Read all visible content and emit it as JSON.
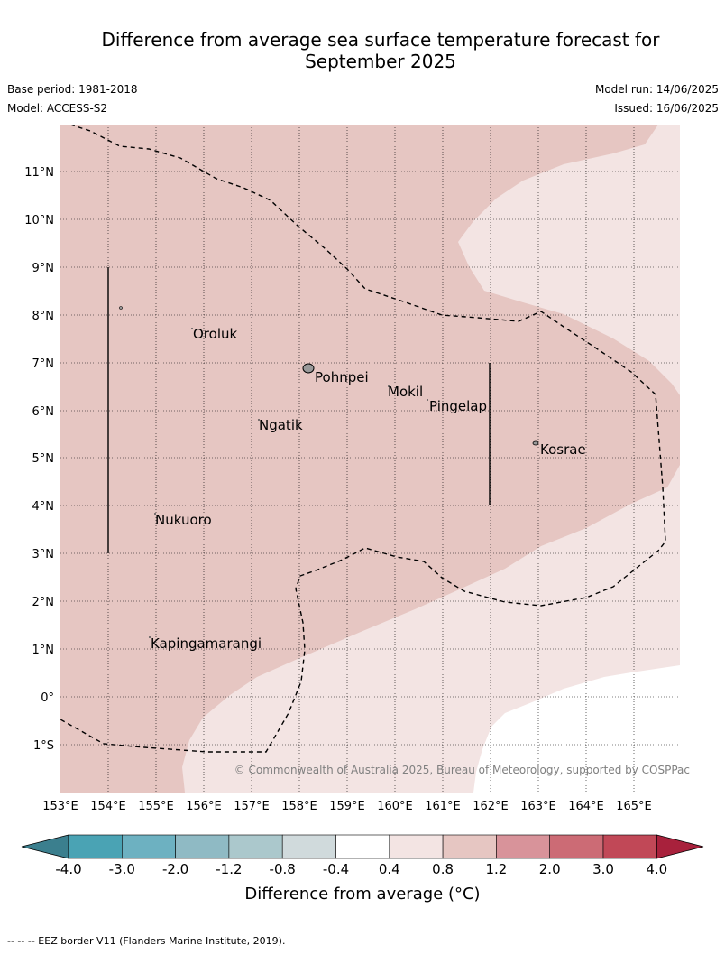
{
  "title_line1": "Difference from average sea surface temperature forecast for",
  "title_line2": "September 2025",
  "base_period": "Base period: 1981-2018",
  "model": "Model: ACCESS-S2",
  "model_run": "Model run: 14/06/2025",
  "issued": "Issued: 16/06/2025",
  "copyright": "© Commonwealth of Australia 2025, Bureau of Meteorology, supported by COSPPac",
  "lon_ticks": [
    "153°E",
    "154°E",
    "155°E",
    "156°E",
    "157°E",
    "158°E",
    "159°E",
    "160°E",
    "161°E",
    "162°E",
    "163°E",
    "164°E",
    "165°E"
  ],
  "lat_ticks": [
    "11°N",
    "10°N",
    "9°N",
    "8°N",
    "7°N",
    "6°N",
    "5°N",
    "4°N",
    "3°N",
    "2°N",
    "1°N",
    "0°",
    "1°S"
  ],
  "islands": [
    {
      "name": "Oroluk"
    },
    {
      "name": "Pohnpei"
    },
    {
      "name": "Mokil"
    },
    {
      "name": "Pingelap"
    },
    {
      "name": "Ngatik"
    },
    {
      "name": "Kosrae"
    },
    {
      "name": "Nukuoro"
    },
    {
      "name": "Kapingamarangi"
    }
  ],
  "colorbar": {
    "labels": [
      "-4.0",
      "-3.0",
      "-2.0",
      "-1.2",
      "-0.8",
      "-0.4",
      "0.4",
      "0.8",
      "1.2",
      "2.0",
      "3.0",
      "4.0"
    ],
    "colors": [
      "#3b7f8e",
      "#4aa3b4",
      "#6db1c1",
      "#8fbac4",
      "#abc8cc",
      "#d0dadc",
      "#ffffff",
      "#f3e4e3",
      "#e6c6c2",
      "#d8939a",
      "#cc6b75",
      "#c14857",
      "#a8213c"
    ],
    "label": "Difference from average (°C)"
  },
  "fill_colors": {
    "high": "#e6c6c2",
    "low": "#f3e4e3",
    "neutral": "#ffffff"
  },
  "footer": "-- -- -- EEZ border V11 (Flanders Marine Institute, 2019)."
}
